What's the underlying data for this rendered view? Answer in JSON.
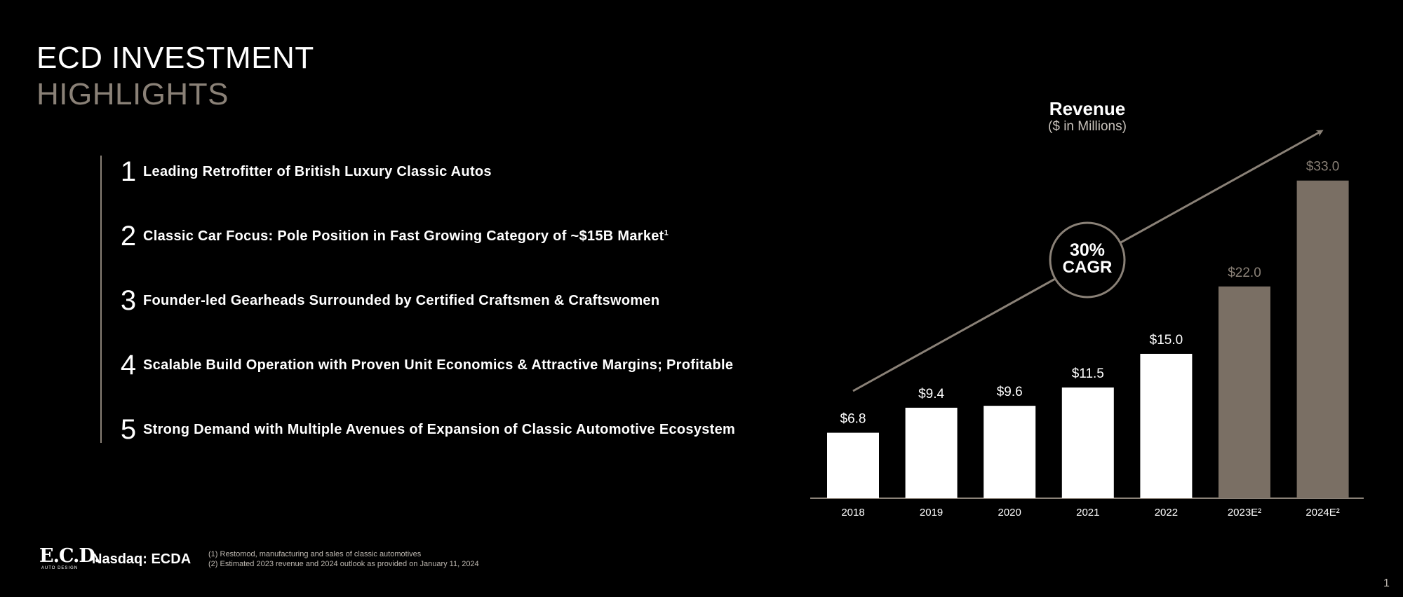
{
  "slide": {
    "title_line1": "ECD INVESTMENT",
    "title_line2": "HIGHLIGHTS",
    "page_number": "1"
  },
  "highlights": [
    {
      "num": "1",
      "text": "Leading Retrofitter of British Luxury Classic Autos",
      "sup": ""
    },
    {
      "num": "2",
      "text": "Classic Car Focus: Pole Position in Fast Growing Category of ~$15B Market",
      "sup": "1"
    },
    {
      "num": "3",
      "text": "Founder-led Gearheads Surrounded by Certified Craftsmen & Craftswomen",
      "sup": ""
    },
    {
      "num": "4",
      "text": "Scalable Build Operation with Proven Unit Economics & Attractive Margins; Profitable",
      "sup": ""
    },
    {
      "num": "5",
      "text": "Strong Demand with Multiple Avenues of Expansion of Classic Automotive Ecosystem",
      "sup": ""
    }
  ],
  "chart_data": {
    "type": "bar",
    "title": "Revenue",
    "subtitle": "($ in Millions)",
    "categories": [
      "2018",
      "2019",
      "2020",
      "2021",
      "2022",
      "2023E²",
      "2024E²"
    ],
    "values": [
      6.8,
      9.4,
      9.6,
      11.5,
      15.0,
      22.0,
      33.0
    ],
    "value_labels": [
      "$6.8",
      "$9.4",
      "$9.6",
      "$11.5",
      "$15.0",
      "$22.0",
      "$33.0"
    ],
    "projected": [
      false,
      false,
      false,
      false,
      false,
      true,
      true
    ],
    "colors": {
      "actual": "#ffffff",
      "projected": "#7a6f64",
      "projected_label": "#8a8177",
      "axis": "#8a8177",
      "trend": "#8a8177"
    },
    "ylim": [
      0,
      36.4
    ],
    "grid": false,
    "annotation": {
      "line1": "30%",
      "line2": "CAGR"
    }
  },
  "footer": {
    "logo_text": "E.C.D.",
    "logo_sub": "AUTO DESIGN",
    "ticker": "Nasdaq: ECDA",
    "footnote1": "(1)  Restomod, manufacturing and sales of classic automotives",
    "footnote2": "(2) Estimated 2023 revenue and 2024 outlook as provided on January 11, 2024"
  }
}
